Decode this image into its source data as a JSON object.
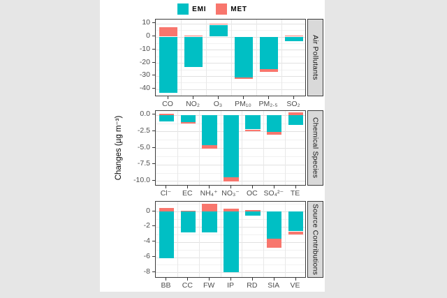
{
  "page": {
    "background": "#e6e6e6",
    "figure_background": "#ffffff"
  },
  "legend": {
    "items": [
      {
        "label": "EMI",
        "color": "#00BFC4"
      },
      {
        "label": "MET",
        "color": "#F8766D"
      }
    ]
  },
  "y_axis_title": "Changes (µg m⁻³)",
  "chart_data": {
    "type": "bar",
    "stacked": true,
    "orientation": "vertical",
    "legend_position": "top",
    "grid": true,
    "ylabel": "Changes (µg m⁻³)",
    "series_colors": {
      "EMI": "#00BFC4",
      "MET": "#F8766D"
    },
    "facet_titles": [
      "Air Pollutants",
      "Chemical Species",
      "Source Contributions"
    ],
    "panels": [
      {
        "title": "Air Pollutants",
        "categories": [
          "CO",
          "NO₂",
          "O₃",
          "PM₁₀",
          "PM₂.₅",
          "SO₂"
        ],
        "series": [
          {
            "name": "EMI",
            "values": [
              -43,
              -23,
              9,
              -31,
              -24.5,
              -3.5
            ]
          },
          {
            "name": "MET",
            "values": [
              7,
              1,
              1,
              -1,
              -2.5,
              1
            ]
          }
        ],
        "yticks": [
          10,
          0,
          -10,
          -20,
          -30,
          -40
        ],
        "ytick_labels": [
          "10",
          "0",
          "-10",
          "-20",
          "-30",
          "-40"
        ],
        "ylim": [
          -46,
          13
        ]
      },
      {
        "title": "Chemical Species",
        "categories": [
          "Cl⁻",
          "EC",
          "NH₄⁺",
          "NO₃⁻",
          "OC",
          "SO₄²⁻",
          "TE"
        ],
        "series": [
          {
            "name": "EMI",
            "values": [
              -1.0,
              -1.1,
              -4.6,
              -9.4,
              -2.2,
              -2.6,
              -1.5
            ]
          },
          {
            "name": "MET",
            "values": [
              0.2,
              -0.2,
              -0.5,
              -0.7,
              -0.3,
              -0.4,
              0.4
            ]
          }
        ],
        "yticks": [
          0,
          -2.5,
          -5,
          -7.5,
          -10
        ],
        "ytick_labels": [
          "0.0",
          "-2.5",
          "-5.0",
          "-7.5",
          "-10.0"
        ],
        "ylim": [
          -10.8,
          0.6
        ]
      },
      {
        "title": "Source Contributions",
        "categories": [
          "BB",
          "CC",
          "FW",
          "IP",
          "RD",
          "SIA",
          "VE"
        ],
        "series": [
          {
            "name": "EMI",
            "values": [
              -6.1,
              -2.7,
              -2.7,
              -8.0,
              -0.5,
              -3.6,
              -2.6
            ]
          },
          {
            "name": "MET",
            "values": [
              0.5,
              0.15,
              1.0,
              0.35,
              0.2,
              -1.2,
              -0.4
            ]
          }
        ],
        "yticks": [
          0,
          -2,
          -4,
          -6,
          -8
        ],
        "ytick_labels": [
          "0",
          "-2",
          "-4",
          "-6",
          "-8"
        ],
        "ylim": [
          -8.8,
          1.3
        ]
      }
    ]
  }
}
